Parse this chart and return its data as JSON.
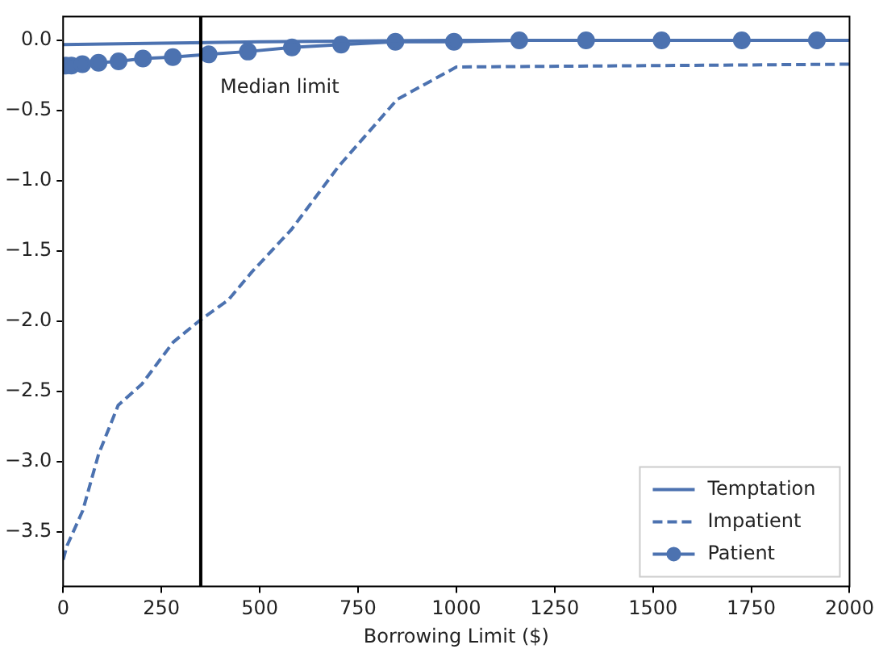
{
  "chart_data": {
    "type": "line",
    "xlabel": "Borrowing Limit ($)",
    "xlim": [
      0,
      2000
    ],
    "xticks": [
      0,
      250,
      500,
      750,
      1000,
      1250,
      1500,
      1750,
      2000
    ],
    "ylim": [
      -3.89,
      0.17
    ],
    "yticks": [
      {
        "value": 0,
        "label": "0.0"
      },
      {
        "value": -0.5,
        "label": "−0.5"
      },
      {
        "value": -1,
        "label": "−1.0"
      },
      {
        "value": -1.5,
        "label": "−1.5"
      },
      {
        "value": -2,
        "label": "−2.0"
      },
      {
        "value": -2.5,
        "label": "−2.5"
      },
      {
        "value": -3,
        "label": "−3.0"
      },
      {
        "value": -3.5,
        "label": "−3.5"
      }
    ],
    "grid": false,
    "legend": "bottom right",
    "series": [
      {
        "name": "Temptation",
        "color": "#4c72b0",
        "line_style": "solid",
        "marker": "none",
        "x": [
          0,
          250,
          500,
          1000,
          2000
        ],
        "values": [
          -0.03,
          -0.02,
          -0.01,
          0,
          0
        ]
      },
      {
        "name": "Impatient",
        "color": "#4c72b0",
        "line_style": "dashed",
        "marker": "none",
        "x": [
          0,
          10,
          50,
          90,
          140,
          200,
          280,
          350,
          420,
          480,
          580,
          700,
          850,
          1000,
          1500,
          2000
        ],
        "values": [
          -3.7,
          -3.6,
          -3.35,
          -2.95,
          -2.6,
          -2.45,
          -2.15,
          -1.99,
          -1.85,
          -1.65,
          -1.35,
          -0.9,
          -0.42,
          -0.19,
          -0.18,
          -0.17
        ]
      },
      {
        "name": "Patient",
        "color": "#4c72b0",
        "line_style": "solid",
        "marker": "circle",
        "x": [
          7,
          21,
          49,
          90,
          141,
          203,
          279,
          370,
          470,
          582,
          707,
          845,
          994,
          1160,
          1330,
          1522,
          1726,
          1917
        ],
        "values": [
          -0.18,
          -0.18,
          -0.17,
          -0.16,
          -0.15,
          -0.13,
          -0.12,
          -0.1,
          -0.08,
          -0.05,
          -0.03,
          -0.01,
          -0.01,
          0,
          0,
          0,
          0,
          0
        ]
      }
    ],
    "ref_lines": [
      {
        "axis": "x",
        "value": 350,
        "color": "#000000",
        "line_style": "solid"
      }
    ],
    "annotations": [
      "Median limit"
    ]
  }
}
